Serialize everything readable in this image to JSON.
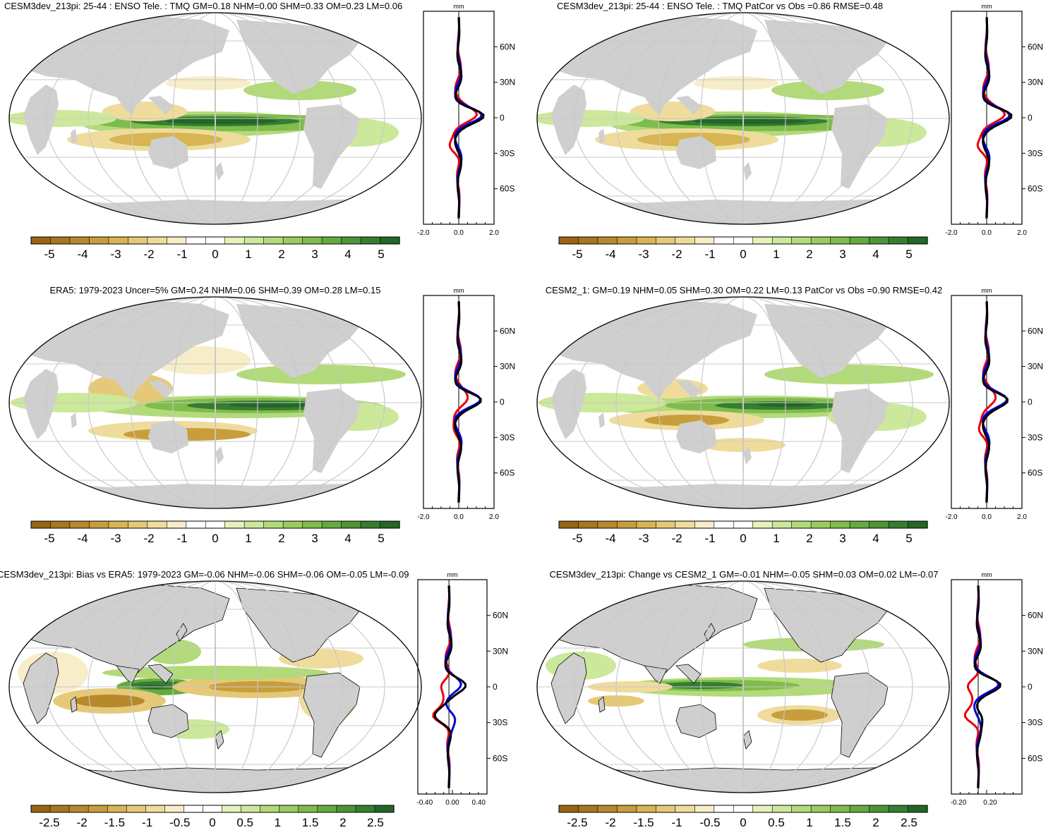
{
  "panels": [
    {
      "title": "CESM3dev_213pi: 25-44 : ENSO Tele. : TMQ GM=0.18 NHM=0.00 SHM=0.33 OM=0.23 LM=0.06",
      "profile_unit": "mm",
      "profile_ticks": [
        "-2.0",
        "0.0",
        "2.0"
      ],
      "lat_labels": [
        "60N",
        "30N",
        "0",
        "30S",
        "60S"
      ],
      "colorbar_labels": [
        "-5",
        "-4",
        "-3",
        "-2",
        "-1",
        "0",
        "1",
        "2",
        "3",
        "4",
        "5"
      ]
    },
    {
      "title": "CESM3dev_213pi: 25-44 : ENSO Tele. : TMQ PatCor vs Obs =0.86 RMSE=0.48",
      "profile_unit": "mm",
      "profile_ticks": [
        "-2.0",
        "0.0",
        "2.0"
      ],
      "lat_labels": [
        "60N",
        "30N",
        "0",
        "30S",
        "60S"
      ],
      "colorbar_labels": [
        "-5",
        "-4",
        "-3",
        "-2",
        "-1",
        "0",
        "1",
        "2",
        "3",
        "4",
        "5"
      ]
    },
    {
      "title": "ERA5: 1979-2023 Uncer=5% GM=0.24 NHM=0.06 SHM=0.39 OM=0.28 LM=0.15",
      "profile_unit": "mm",
      "profile_ticks": [
        "-2.0",
        "0.0",
        "2.0"
      ],
      "lat_labels": [
        "60N",
        "30N",
        "0",
        "30S",
        "60S"
      ],
      "colorbar_labels": [
        "-5",
        "-4",
        "-3",
        "-2",
        "-1",
        "0",
        "1",
        "2",
        "3",
        "4",
        "5"
      ]
    },
    {
      "title": "CESM2_1: GM=0.19 NHM=0.05 SHM=0.30 OM=0.22 LM=0.13 PatCor vs Obs =0.90 RMSE=0.42",
      "profile_unit": "mm",
      "profile_ticks": [
        "-2.0",
        "0.0",
        "2.0"
      ],
      "lat_labels": [
        "60N",
        "30N",
        "0",
        "30S",
        "60S"
      ],
      "colorbar_labels": [
        "-5",
        "-4",
        "-3",
        "-2",
        "-1",
        "0",
        "1",
        "2",
        "3",
        "4",
        "5"
      ]
    },
    {
      "title": "CESM3dev_213pi: Bias vs ERA5: 1979-2023 GM=-0.06 NHM=-0.06 SHM=-0.06 OM=-0.05 LM=-0.09",
      "profile_unit": "mm",
      "profile_ticks": [
        "-0.40",
        "0.00",
        "0.40"
      ],
      "lat_labels": [
        "60N",
        "30N",
        "0",
        "30S",
        "60S"
      ],
      "colorbar_labels": [
        "-2.5",
        "-2",
        "-1.5",
        "-1",
        "-0.5",
        "0",
        "0.5",
        "1",
        "1.5",
        "2",
        "2.5"
      ]
    },
    {
      "title": "CESM3dev_213pi: Change vs CESM2_1 GM=-0.01 NHM=-0.05 SHM=0.03 OM=0.02 LM=-0.07",
      "profile_unit": "mm",
      "profile_ticks": [
        "-0.20",
        "0.20"
      ],
      "lat_labels": [
        "60N",
        "30N",
        "0",
        "30S",
        "60S"
      ],
      "colorbar_labels": [
        "-2.5",
        "-2",
        "-1.5",
        "-1",
        "-0.5",
        "0",
        "0.5",
        "1",
        "1.5",
        "2",
        "2.5"
      ]
    }
  ],
  "colors": {
    "land": "#cfcfcf",
    "ocean": "#ffffff",
    "grid": "#c8c8c8",
    "model_line": "#e8000b",
    "obs_line": "#0000dd",
    "mean_line": "#000000",
    "colorbar": [
      "#996515",
      "#a8761f",
      "#b8892b",
      "#c89e3c",
      "#d7b454",
      "#e5c978",
      "#efdc9c",
      "#f7edc8",
      "#ffffff",
      "#ffffff",
      "#e4f2bb",
      "#cce89a",
      "#b2da7a",
      "#98cc5e",
      "#7fbc4b",
      "#65aa3e",
      "#4c9436",
      "#367d2f",
      "#236628"
    ]
  }
}
